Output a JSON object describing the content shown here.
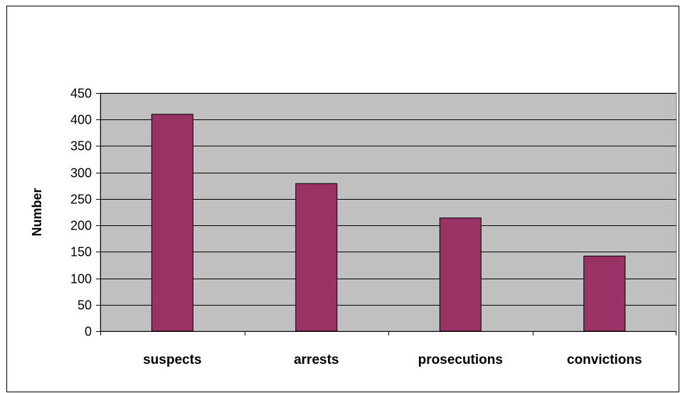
{
  "chart_data": {
    "type": "bar",
    "title": "",
    "xlabel": "",
    "ylabel": "Number",
    "ylim": [
      0,
      450
    ],
    "yticks": [
      0,
      50,
      100,
      150,
      200,
      250,
      300,
      350,
      400,
      450
    ],
    "categories": [
      "suspects",
      "arrests",
      "prosecutions",
      "convictions"
    ],
    "values": [
      410,
      279,
      214,
      142
    ],
    "grid": true,
    "legend": "none",
    "colors": {
      "bar": "#993366",
      "plot_background": "#c0c0c0",
      "gridline": "#000000"
    }
  }
}
